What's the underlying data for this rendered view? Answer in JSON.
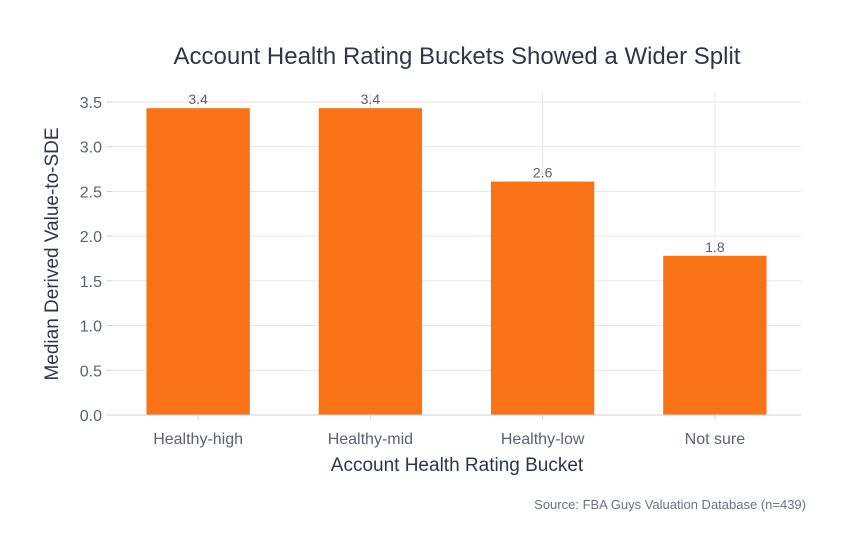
{
  "chart_data": {
    "type": "bar",
    "title": "Account Health Rating Buckets Showed a Wider Split",
    "xlabel": "Account Health Rating Bucket",
    "ylabel": "Median Derived Value-to-SDE",
    "categories": [
      "Healthy-high",
      "Healthy-mid",
      "Healthy-low",
      "Not sure"
    ],
    "values": [
      3.43,
      3.43,
      2.61,
      1.78
    ],
    "data_labels": [
      "3.4",
      "3.4",
      "2.6",
      "1.8"
    ],
    "ylim": [
      0,
      3.6
    ],
    "yticks": [
      "0.0",
      "0.5",
      "1.0",
      "1.5",
      "2.0",
      "2.5",
      "3.0",
      "3.5"
    ],
    "grid": true,
    "bar_color": "#f97316",
    "source": "Source: FBA Guys Valuation Database (n=439)"
  }
}
